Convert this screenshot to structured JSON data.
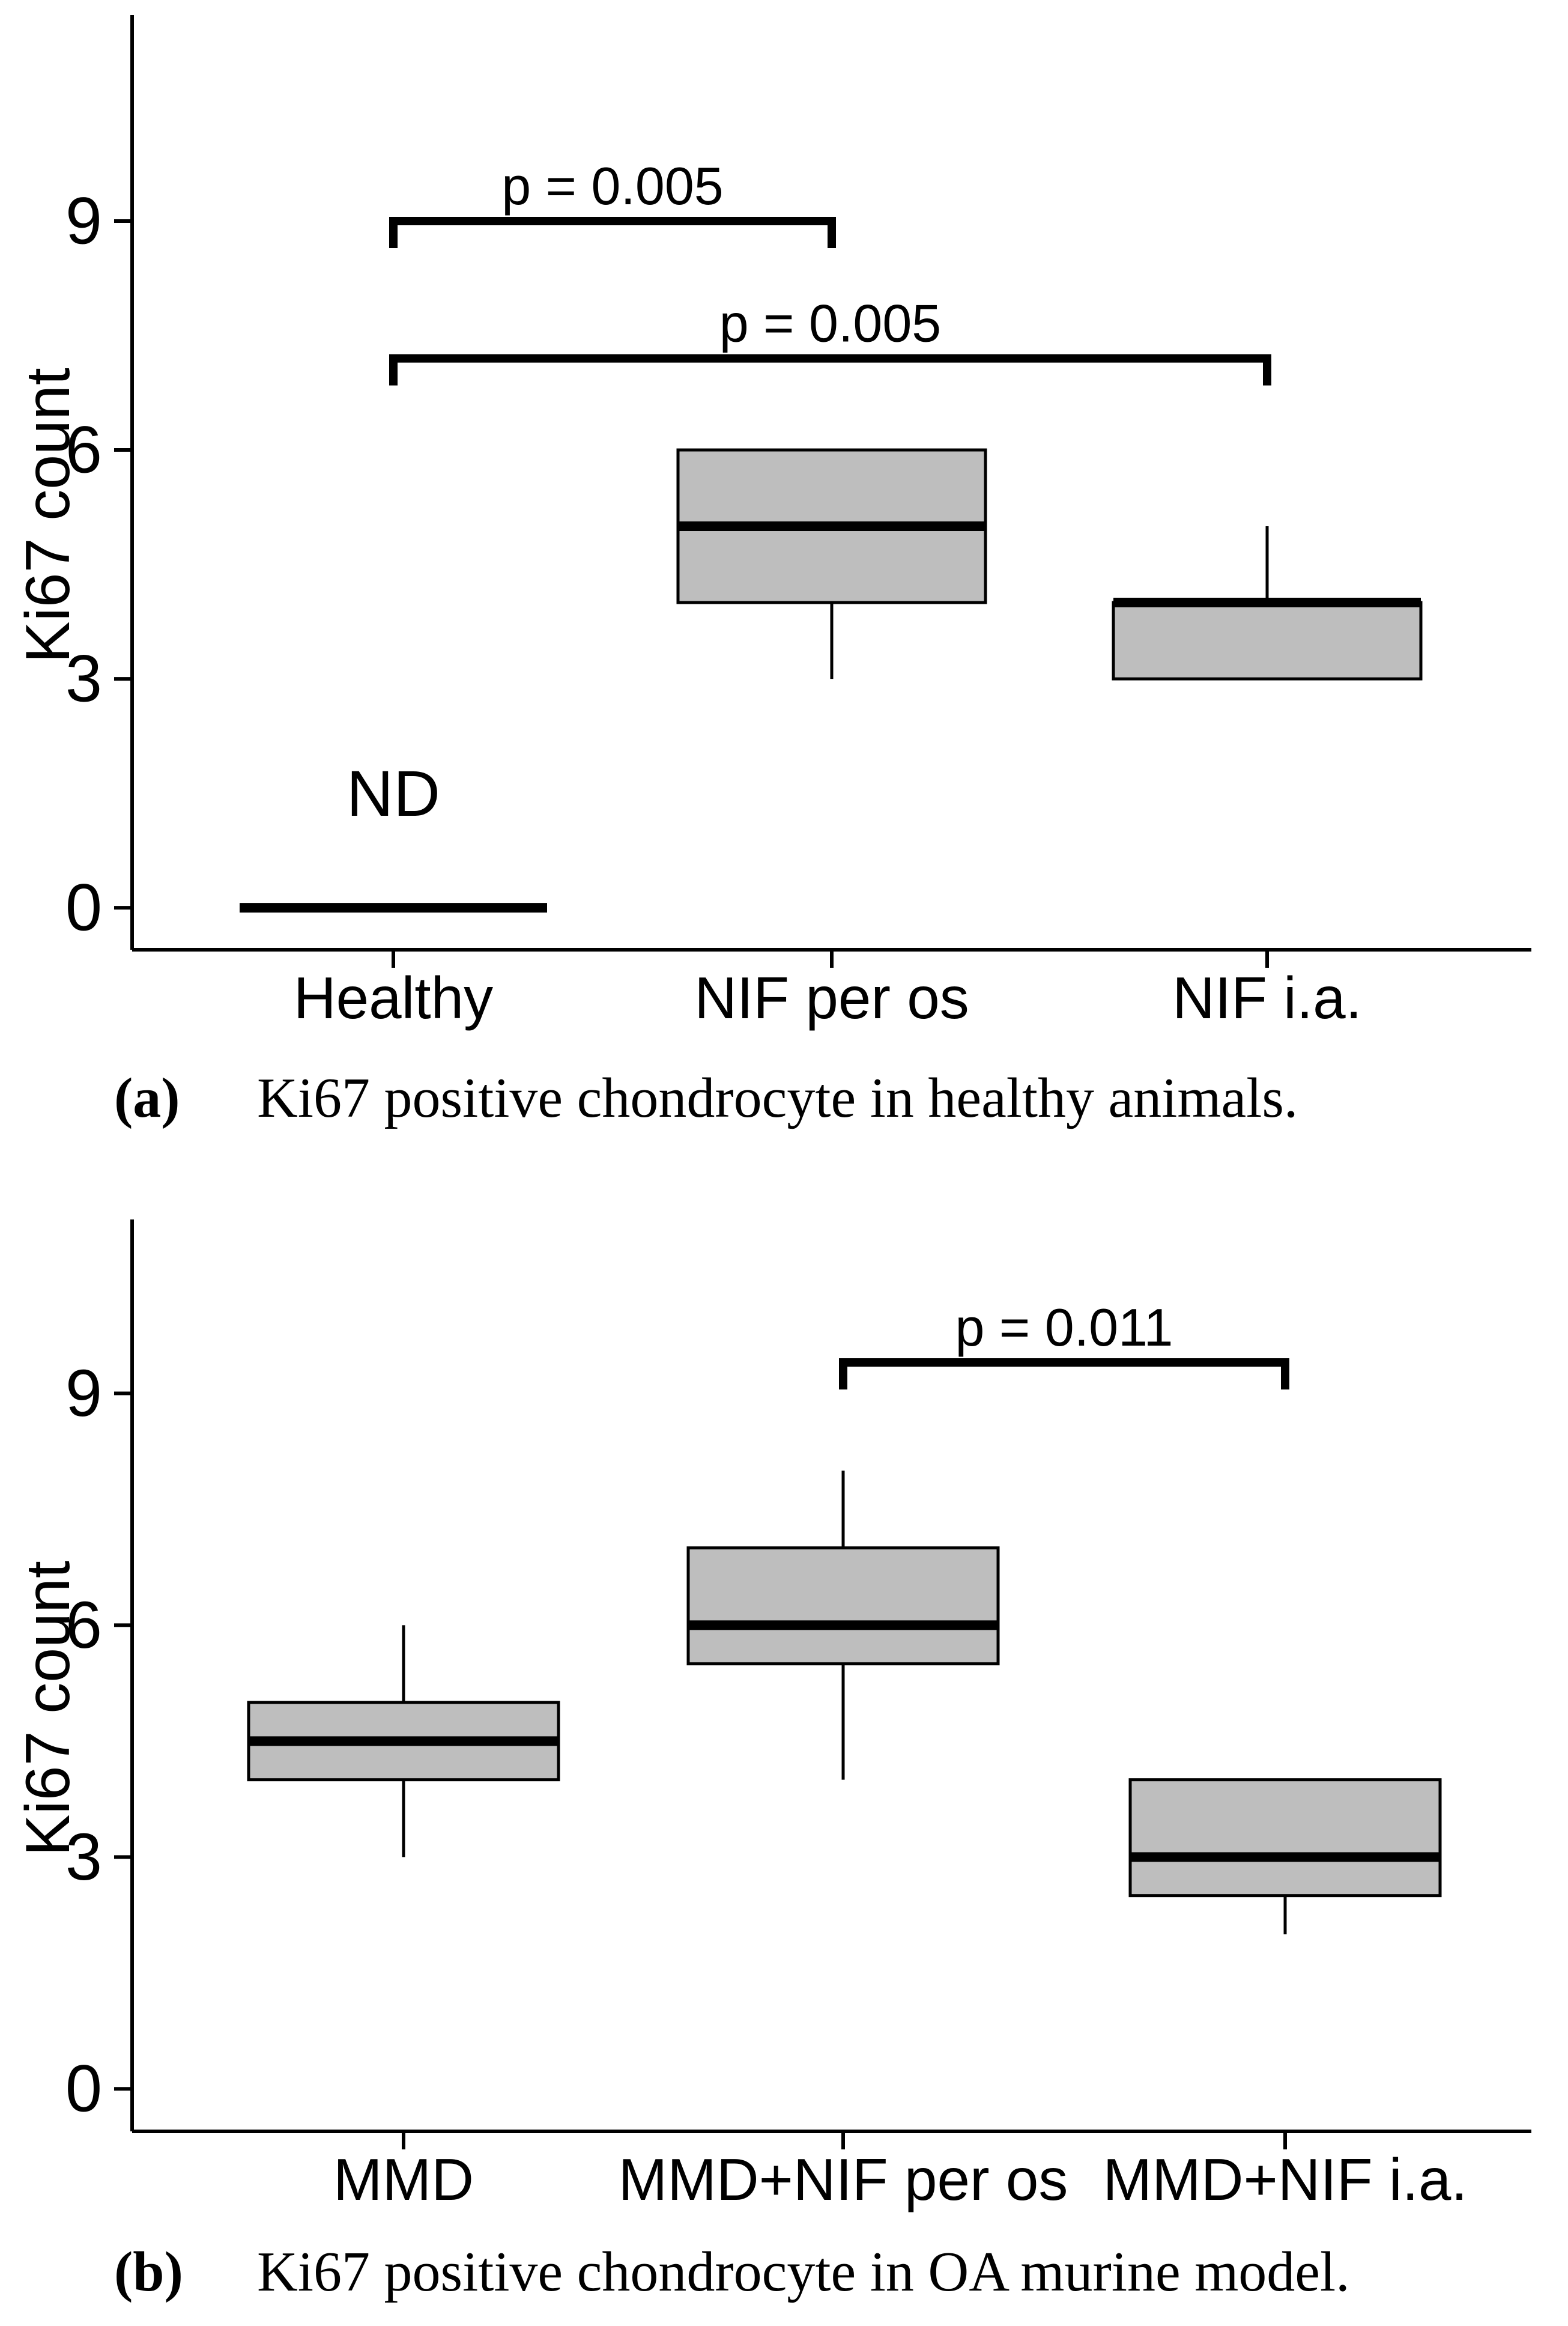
{
  "figure": {
    "captions": [
      {
        "tag": "(a)",
        "text": "Ki67 positive chondrocyte in healthy animals."
      },
      {
        "tag": "(b)",
        "text": "Ki67 positive chondrocyte in OA murine model."
      }
    ]
  },
  "colors": {
    "box_fill": "#bebebe",
    "stroke": "#000000",
    "background": "#ffffff"
  },
  "chart_data": [
    {
      "id": "a",
      "type": "box",
      "title": "",
      "xlabel": "",
      "ylabel": "Ki67 count",
      "yticks": [
        0,
        3,
        6,
        9
      ],
      "ylim": [
        -0.55,
        11.7
      ],
      "grid": false,
      "legend": "none",
      "categories": [
        "Healthy",
        "NIF per os",
        "NIF i.a."
      ],
      "boxes": [
        {
          "category": "Healthy",
          "nd": true,
          "median": 0,
          "annotation": "ND",
          "annotation_y": 1.5,
          "q1": null,
          "q3": null,
          "whisker_low": null,
          "whisker_high": null
        },
        {
          "category": "NIF per os",
          "nd": false,
          "q1": 4,
          "median": 5,
          "q3": 6,
          "whisker_low": 3,
          "whisker_high": null,
          "annotation": "",
          "annotation_y": null
        },
        {
          "category": "NIF i.a.",
          "nd": false,
          "q1": 3,
          "median": 4,
          "q3": 4,
          "whisker_low": null,
          "whisker_high": 5,
          "annotation": "",
          "annotation_y": null
        }
      ],
      "brackets": [
        {
          "label": "p = 0.005",
          "from": 0,
          "to": 1,
          "y": 9.0
        },
        {
          "label": "p = 0.005",
          "from": 0,
          "to": 2,
          "y": 7.2
        }
      ]
    },
    {
      "id": "b",
      "type": "box",
      "title": "",
      "xlabel": "",
      "ylabel": "Ki67 count",
      "yticks": [
        0,
        3,
        6,
        9
      ],
      "ylim": [
        -0.55,
        11.25
      ],
      "grid": false,
      "legend": "none",
      "categories": [
        "MMD",
        "MMD+NIF per os",
        "MMD+NIF i.a."
      ],
      "boxes": [
        {
          "category": "MMD",
          "nd": false,
          "q1": 4,
          "median": 4.5,
          "q3": 5,
          "whisker_low": 3,
          "whisker_high": 6,
          "annotation": "",
          "annotation_y": null
        },
        {
          "category": "MMD+NIF per os",
          "nd": false,
          "q1": 5.5,
          "median": 6,
          "q3": 7,
          "whisker_low": 4,
          "whisker_high": 8,
          "annotation": "",
          "annotation_y": null
        },
        {
          "category": "MMD+NIF i.a.",
          "nd": false,
          "q1": 2.5,
          "median": 3,
          "q3": 4,
          "whisker_low": 2,
          "whisker_high": null,
          "annotation": "",
          "annotation_y": null
        }
      ],
      "brackets": [
        {
          "label": "p = 0.011",
          "from": 1,
          "to": 2,
          "y": 9.4
        }
      ]
    }
  ]
}
